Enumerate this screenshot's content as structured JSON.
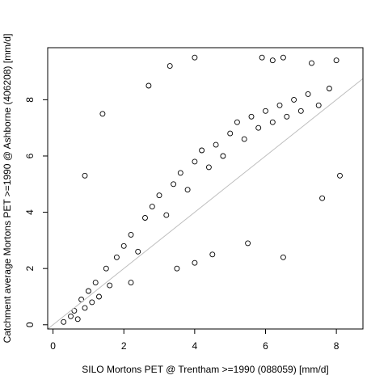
{
  "chart_data": {
    "type": "scatter",
    "title": "",
    "xlabel": "SILO Mortons PET @ Trentham >=1990 (088059) [mm/d]",
    "ylabel": "Catchment average Mortons PET >=1990 @ Ashborne (406208) [mm/d]",
    "xlim": [
      -0.15,
      8.75
    ],
    "ylim": [
      -0.15,
      9.85
    ],
    "x_ticks": [
      "0",
      "2",
      "4",
      "6",
      "8"
    ],
    "y_ticks": [
      "0",
      "2",
      "4",
      "6",
      "8"
    ],
    "grid": false,
    "legend": "none",
    "marker": "open-circle",
    "marker_color": "#000000",
    "reference_line": {
      "from": [
        -0.15,
        -0.15
      ],
      "to": [
        8.75,
        8.75
      ],
      "color": "#bebebe"
    },
    "series": [
      {
        "values": [
          [
            0.3,
            0.1
          ],
          [
            0.5,
            0.3
          ],
          [
            0.6,
            0.5
          ],
          [
            0.7,
            0.2
          ],
          [
            0.8,
            0.9
          ],
          [
            0.9,
            0.6
          ],
          [
            1.0,
            1.2
          ],
          [
            1.1,
            0.8
          ],
          [
            1.2,
            1.5
          ],
          [
            1.3,
            1.0
          ],
          [
            1.5,
            2.0
          ],
          [
            1.6,
            1.4
          ],
          [
            1.8,
            2.4
          ],
          [
            2.0,
            2.8
          ],
          [
            2.2,
            3.2
          ],
          [
            2.4,
            2.6
          ],
          [
            2.6,
            3.8
          ],
          [
            2.8,
            4.2
          ],
          [
            3.0,
            4.6
          ],
          [
            3.2,
            3.9
          ],
          [
            3.4,
            5.0
          ],
          [
            3.6,
            5.4
          ],
          [
            3.8,
            4.8
          ],
          [
            4.0,
            5.8
          ],
          [
            4.2,
            6.2
          ],
          [
            4.4,
            5.6
          ],
          [
            4.6,
            6.4
          ],
          [
            4.8,
            6.0
          ],
          [
            5.0,
            6.8
          ],
          [
            5.2,
            7.2
          ],
          [
            5.4,
            6.6
          ],
          [
            5.6,
            7.4
          ],
          [
            5.8,
            7.0
          ],
          [
            6.0,
            7.6
          ],
          [
            6.2,
            7.2
          ],
          [
            6.4,
            7.8
          ],
          [
            6.6,
            7.4
          ],
          [
            6.8,
            8.0
          ],
          [
            7.0,
            7.6
          ],
          [
            7.2,
            8.2
          ],
          [
            7.5,
            7.8
          ],
          [
            7.8,
            8.4
          ],
          [
            8.0,
            9.4
          ],
          [
            3.3,
            9.2
          ],
          [
            4.0,
            9.5
          ],
          [
            5.9,
            9.5
          ],
          [
            6.2,
            9.4
          ],
          [
            6.5,
            9.5
          ],
          [
            7.3,
            9.3
          ],
          [
            8.1,
            5.3
          ],
          [
            1.4,
            7.5
          ],
          [
            2.7,
            8.5
          ],
          [
            0.9,
            5.3
          ],
          [
            2.2,
            1.5
          ],
          [
            4.5,
            2.5
          ],
          [
            5.5,
            2.9
          ],
          [
            6.5,
            2.4
          ],
          [
            3.5,
            2.0
          ],
          [
            4.0,
            2.2
          ],
          [
            7.6,
            4.5
          ]
        ]
      }
    ]
  }
}
